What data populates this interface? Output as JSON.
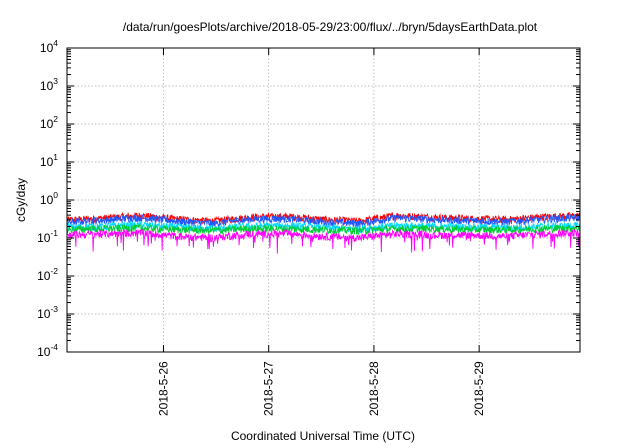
{
  "chart_data": {
    "type": "line",
    "title": "/data/run/goesPlots/archive/2018-05-29/23:00/flux/../bryn/5daysEarthData.plot",
    "xlabel": "Coordinated Universal Time (UTC)",
    "ylabel": "cGy/day",
    "y_scale": "log",
    "ylim": [
      0.0001,
      10000
    ],
    "y_ticks": [
      {
        "base": "10",
        "exp": "-4",
        "value": 0.0001
      },
      {
        "base": "10",
        "exp": "-3",
        "value": 0.001
      },
      {
        "base": "10",
        "exp": "-2",
        "value": 0.01
      },
      {
        "base": "10",
        "exp": "-1",
        "value": 0.1
      },
      {
        "base": "10",
        "exp": "0",
        "value": 1
      },
      {
        "base": "10",
        "exp": "1",
        "value": 10
      },
      {
        "base": "10",
        "exp": "2",
        "value": 100
      },
      {
        "base": "10",
        "exp": "3",
        "value": 1000
      },
      {
        "base": "10",
        "exp": "4",
        "value": 10000
      }
    ],
    "xlim": [
      "2018-05-25T02:00",
      "2018-05-29T23:00"
    ],
    "x_ticks": [
      "2018-5-26",
      "2018-5-27",
      "2018-5-28",
      "2018-5-29"
    ],
    "grid": true,
    "legend": "none",
    "series": [
      {
        "color": "#ff0000",
        "values": [
          0.32,
          0.36,
          0.42,
          0.34,
          0.3,
          0.38,
          0.4,
          0.33,
          0.3,
          0.42,
          0.38,
          0.35,
          0.33,
          0.39,
          0.42
        ]
      },
      {
        "color": "#1e5aff",
        "values": [
          0.28,
          0.32,
          0.37,
          0.3,
          0.26,
          0.34,
          0.35,
          0.29,
          0.26,
          0.37,
          0.33,
          0.31,
          0.29,
          0.34,
          0.37
        ]
      },
      {
        "color": "#00d8ff",
        "values": [
          0.21,
          0.22,
          0.24,
          0.21,
          0.19,
          0.22,
          0.23,
          0.2,
          0.19,
          0.23,
          0.22,
          0.21,
          0.2,
          0.22,
          0.23
        ]
      },
      {
        "color": "#00cc33",
        "values": [
          0.18,
          0.19,
          0.2,
          0.18,
          0.17,
          0.19,
          0.19,
          0.18,
          0.17,
          0.19,
          0.19,
          0.18,
          0.18,
          0.19,
          0.2
        ]
      },
      {
        "color": "#ff00ff",
        "values": [
          0.13,
          0.14,
          0.15,
          0.12,
          0.11,
          0.14,
          0.14,
          0.12,
          0.11,
          0.14,
          0.13,
          0.13,
          0.12,
          0.14,
          0.15
        ]
      }
    ]
  }
}
